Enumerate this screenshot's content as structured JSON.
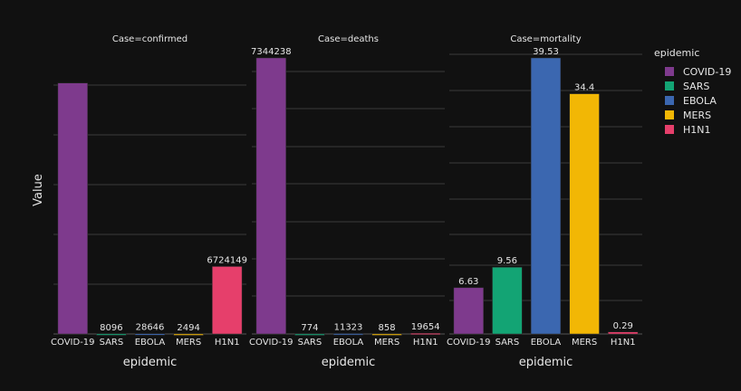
{
  "chart_data": {
    "type": "bar",
    "categories": [
      "COVID-19",
      "SARS",
      "EBOLA",
      "MERS",
      "H1N1"
    ],
    "ylabel": "Value",
    "xlabel": "epidemic",
    "legend": {
      "title": "epidemic",
      "placement": "right",
      "items": [
        {
          "name": "COVID-19",
          "color": "#7e3a8d"
        },
        {
          "name": "SARS",
          "color": "#13a474"
        },
        {
          "name": "EBOLA",
          "color": "#3b67b0"
        },
        {
          "name": "MERS",
          "color": "#f2b705"
        },
        {
          "name": "H1N1",
          "color": "#e63f6b"
        }
      ]
    },
    "facets": [
      {
        "title": "Case=confirmed",
        "values": [
          25000000,
          8096,
          28646,
          2494,
          6724149
        ],
        "labels": [
          "",
          "8096",
          "28646",
          "2494",
          "6724149"
        ],
        "ylim": [
          0,
          27500000
        ]
      },
      {
        "title": "Case=deaths",
        "values": [
          7344238,
          774,
          11323,
          858,
          19654
        ],
        "labels": [
          "7344238",
          "774",
          "11323",
          "858",
          "19654"
        ],
        "ylim": [
          0,
          7344238
        ]
      },
      {
        "title": "Case=mortality",
        "values": [
          6.63,
          9.56,
          39.53,
          34.4,
          0.29
        ],
        "labels": [
          "6.63",
          "9.56",
          "39.53",
          "34.4",
          "0.29"
        ],
        "ylim": [
          0,
          39.53
        ]
      }
    ],
    "grid": true
  }
}
